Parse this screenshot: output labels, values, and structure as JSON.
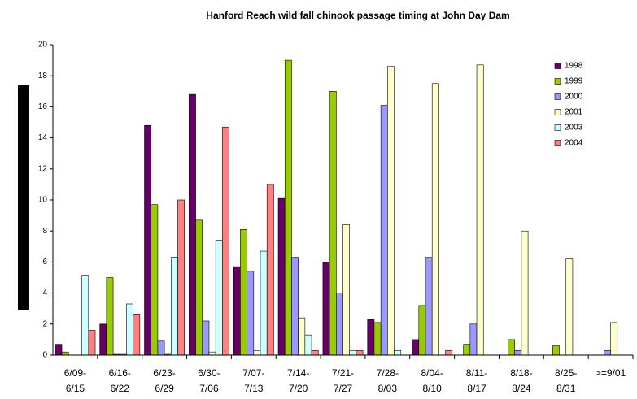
{
  "chart_data": {
    "type": "bar",
    "title": "Hanford Reach wild fall chinook passage timing at John Day Dam",
    "categories": [
      [
        "6/09-",
        "6/15"
      ],
      [
        "6/16-",
        "6/22"
      ],
      [
        "6/23-",
        "6/29"
      ],
      [
        "6/30-",
        "7/06"
      ],
      [
        "7/07-",
        "7/13"
      ],
      [
        "7/14-",
        "7/20"
      ],
      [
        "7/21-",
        "7/27"
      ],
      [
        "7/28-",
        "8/03"
      ],
      [
        "8/04-",
        "8/10"
      ],
      [
        "8/11-",
        "8/17"
      ],
      [
        "8/18-",
        "8/24"
      ],
      [
        "8/25-",
        "8/31"
      ],
      [
        ">=9/01"
      ]
    ],
    "series": [
      {
        "name": "1998",
        "color": "#660066",
        "values": [
          0.7,
          2.0,
          14.8,
          16.8,
          5.7,
          10.1,
          6.0,
          2.3,
          1.0,
          0,
          0,
          0,
          0
        ]
      },
      {
        "name": "1999",
        "color": "#99cc00",
        "values": [
          0.2,
          5.0,
          9.7,
          8.7,
          8.1,
          19.0,
          17.0,
          2.1,
          3.2,
          0.7,
          1.0,
          0.6,
          0
        ]
      },
      {
        "name": "2000",
        "color": "#9999ff",
        "values": [
          0,
          0.05,
          0.9,
          2.2,
          5.4,
          6.3,
          4.0,
          16.1,
          6.3,
          2.0,
          0.3,
          0,
          0.3
        ]
      },
      {
        "name": "2001",
        "color": "#ffffcc",
        "values": [
          0,
          0.05,
          0.05,
          0.2,
          0.3,
          2.4,
          8.4,
          18.6,
          17.5,
          18.7,
          8.0,
          6.2,
          2.1
        ]
      },
      {
        "name": "2003",
        "color": "#ccffff",
        "values": [
          5.1,
          3.3,
          6.3,
          7.4,
          6.7,
          1.3,
          0.3,
          0.3,
          0,
          0,
          0,
          0,
          0
        ]
      },
      {
        "name": "2004",
        "color": "#ff8080",
        "values": [
          1.6,
          2.6,
          10.0,
          14.7,
          11.0,
          0.3,
          0.3,
          0,
          0.3,
          0,
          0,
          0,
          0
        ]
      }
    ],
    "ylim": [
      0,
      20
    ],
    "yticks": [
      0,
      2,
      4,
      6,
      8,
      10,
      12,
      14,
      16,
      18,
      20
    ],
    "legend": "right"
  }
}
